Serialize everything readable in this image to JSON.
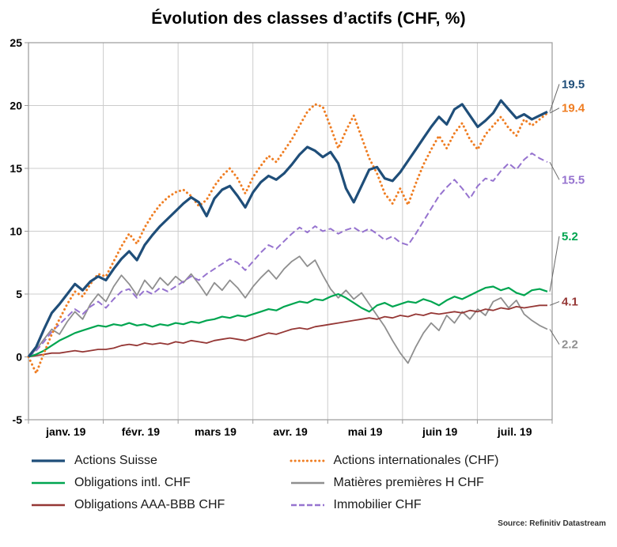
{
  "page": {
    "title": "Évolution des classes d’actifs (CHF, %)",
    "source": "Source: Refinitiv Datastream"
  },
  "chart_data": {
    "type": "line",
    "title": "Évolution des classes d’actifs (CHF, %)",
    "x_tick_labels": [
      "janv. 19",
      "févr. 19",
      "mars 19",
      "avr. 19",
      "mai 19",
      "juin 19",
      "juil. 19"
    ],
    "ylim": [
      -5,
      25
    ],
    "yticks": [
      -5,
      0,
      5,
      10,
      15,
      20,
      25
    ],
    "grid": true,
    "legend_position": "bottom",
    "axis_color": "#9a9a9a",
    "grid_color": "#cccccc",
    "leader_color": "#666666",
    "series": [
      {
        "name": "Actions Suisse",
        "color": "#1f4e79",
        "line_style": "solid",
        "line_width": 3.2,
        "end_value": 19.5,
        "end_label": "19.5",
        "label_v": 21.7,
        "draw_order": 6,
        "values": [
          0,
          0.8,
          2.2,
          3.5,
          4.2,
          5.0,
          5.8,
          5.3,
          6.0,
          6.4,
          6.1,
          7.0,
          7.8,
          8.4,
          7.7,
          8.9,
          9.7,
          10.4,
          11.0,
          11.6,
          12.2,
          12.7,
          12.3,
          11.2,
          12.6,
          13.3,
          13.6,
          12.8,
          11.9,
          13.1,
          13.9,
          14.4,
          14.1,
          14.6,
          15.3,
          16.1,
          16.7,
          16.4,
          15.9,
          16.3,
          15.4,
          13.4,
          12.3,
          13.6,
          14.9,
          15.1,
          14.2,
          14.0,
          14.7,
          15.6,
          16.5,
          17.4,
          18.3,
          19.1,
          18.5,
          19.7,
          20.1,
          19.2,
          18.3,
          18.8,
          19.4,
          20.4,
          19.7,
          19.0,
          19.3,
          18.9,
          19.2,
          19.5
        ]
      },
      {
        "name": "Actions internationales (CHF)",
        "color": "#ef7d22",
        "line_style": "dotted",
        "line_width": 3,
        "end_value": 19.4,
        "end_label": "19.4",
        "label_v": 19.8,
        "draw_order": 5,
        "values": [
          0,
          -1.3,
          0.3,
          1.8,
          3.0,
          4.2,
          5.2,
          4.8,
          5.8,
          6.6,
          6.4,
          7.6,
          8.8,
          9.8,
          9.0,
          10.3,
          11.3,
          12.1,
          12.7,
          13.1,
          13.3,
          12.8,
          12.0,
          12.5,
          13.6,
          14.4,
          15.0,
          14.2,
          13.0,
          14.3,
          15.2,
          16.0,
          15.5,
          16.4,
          17.3,
          18.4,
          19.5,
          20.1,
          19.9,
          18.3,
          16.6,
          18.0,
          19.2,
          17.5,
          15.8,
          14.6,
          13.0,
          12.2,
          13.4,
          12.1,
          13.8,
          15.3,
          16.5,
          17.6,
          16.6,
          17.8,
          18.6,
          17.3,
          16.5,
          17.7,
          18.4,
          19.1,
          18.2,
          17.6,
          18.9,
          18.4,
          18.9,
          19.4
        ]
      },
      {
        "name": "Obligations intl. CHF",
        "color": "#00a550",
        "line_style": "solid",
        "line_width": 2.2,
        "end_value": 5.2,
        "end_label": "5.2",
        "label_v": 9.6,
        "draw_order": 4,
        "values": [
          0,
          0.2,
          0.5,
          0.9,
          1.3,
          1.6,
          1.9,
          2.1,
          2.3,
          2.5,
          2.4,
          2.6,
          2.5,
          2.7,
          2.5,
          2.6,
          2.4,
          2.6,
          2.5,
          2.7,
          2.6,
          2.8,
          2.7,
          2.9,
          3.0,
          3.2,
          3.1,
          3.3,
          3.2,
          3.4,
          3.6,
          3.8,
          3.7,
          4.0,
          4.2,
          4.4,
          4.3,
          4.6,
          4.5,
          4.8,
          5.0,
          4.7,
          4.3,
          3.9,
          3.6,
          4.1,
          4.3,
          4.0,
          4.2,
          4.4,
          4.3,
          4.6,
          4.4,
          4.1,
          4.5,
          4.8,
          4.6,
          4.9,
          5.2,
          5.5,
          5.6,
          5.3,
          5.5,
          5.1,
          4.9,
          5.3,
          5.4,
          5.2
        ]
      },
      {
        "name": "Matières premières H CHF",
        "color": "#8f8f8f",
        "line_style": "solid",
        "line_width": 1.8,
        "end_value": 2.2,
        "end_label": "2.2",
        "label_v": 1.0,
        "draw_order": 1,
        "values": [
          0,
          0.6,
          1.4,
          2.2,
          1.8,
          2.8,
          3.6,
          3.0,
          4.2,
          5.0,
          4.4,
          5.6,
          6.5,
          5.8,
          4.9,
          6.1,
          5.4,
          6.3,
          5.7,
          6.4,
          5.9,
          6.6,
          5.8,
          4.9,
          5.9,
          5.3,
          6.1,
          5.5,
          4.7,
          5.6,
          6.3,
          6.9,
          6.2,
          7.0,
          7.6,
          8.0,
          7.2,
          7.7,
          6.5,
          5.4,
          4.7,
          5.3,
          4.6,
          5.1,
          4.2,
          3.3,
          2.4,
          1.3,
          0.3,
          -0.5,
          0.8,
          1.9,
          2.7,
          2.1,
          3.3,
          2.7,
          3.6,
          3.0,
          3.8,
          3.3,
          4.4,
          4.7,
          3.9,
          4.5,
          3.4,
          2.9,
          2.5,
          2.2
        ]
      },
      {
        "name": "Obligations AAA-BBB CHF",
        "color": "#953735",
        "line_style": "solid",
        "line_width": 1.8,
        "end_value": 4.1,
        "end_label": "4.1",
        "label_v": 4.4,
        "draw_order": 3,
        "values": [
          0,
          0.1,
          0.2,
          0.3,
          0.3,
          0.4,
          0.5,
          0.4,
          0.5,
          0.6,
          0.6,
          0.7,
          0.9,
          1.0,
          0.9,
          1.1,
          1.0,
          1.1,
          1.0,
          1.2,
          1.1,
          1.3,
          1.2,
          1.1,
          1.3,
          1.4,
          1.5,
          1.4,
          1.3,
          1.5,
          1.7,
          1.9,
          1.8,
          2.0,
          2.2,
          2.3,
          2.2,
          2.4,
          2.5,
          2.6,
          2.7,
          2.8,
          2.9,
          3.0,
          3.1,
          3.0,
          3.2,
          3.1,
          3.3,
          3.2,
          3.4,
          3.3,
          3.5,
          3.4,
          3.5,
          3.6,
          3.5,
          3.7,
          3.6,
          3.8,
          3.7,
          3.9,
          3.8,
          4.0,
          3.9,
          4.0,
          4.1,
          4.1
        ]
      },
      {
        "name": "Immobilier CHF",
        "color": "#9673cf",
        "line_style": "dashed",
        "line_width": 2.0,
        "end_value": 15.5,
        "end_label": "15.5",
        "label_v": 14.1,
        "draw_order": 2,
        "values": [
          0,
          0.5,
          1.2,
          2.0,
          2.6,
          3.2,
          3.8,
          3.4,
          4.0,
          4.4,
          3.9,
          4.6,
          5.2,
          5.4,
          4.7,
          5.3,
          5.0,
          5.5,
          5.2,
          5.6,
          6.0,
          6.4,
          6.1,
          6.6,
          7.0,
          7.4,
          7.8,
          7.5,
          6.9,
          7.6,
          8.3,
          8.9,
          8.6,
          9.2,
          9.8,
          10.3,
          9.9,
          10.4,
          10.0,
          10.2,
          9.8,
          10.1,
          10.3,
          9.9,
          10.2,
          9.8,
          9.3,
          9.6,
          9.1,
          8.9,
          9.8,
          10.8,
          11.8,
          12.8,
          13.5,
          14.1,
          13.4,
          12.6,
          13.6,
          14.2,
          14.0,
          14.8,
          15.4,
          14.9,
          15.7,
          16.2,
          15.8,
          15.5
        ]
      }
    ]
  }
}
